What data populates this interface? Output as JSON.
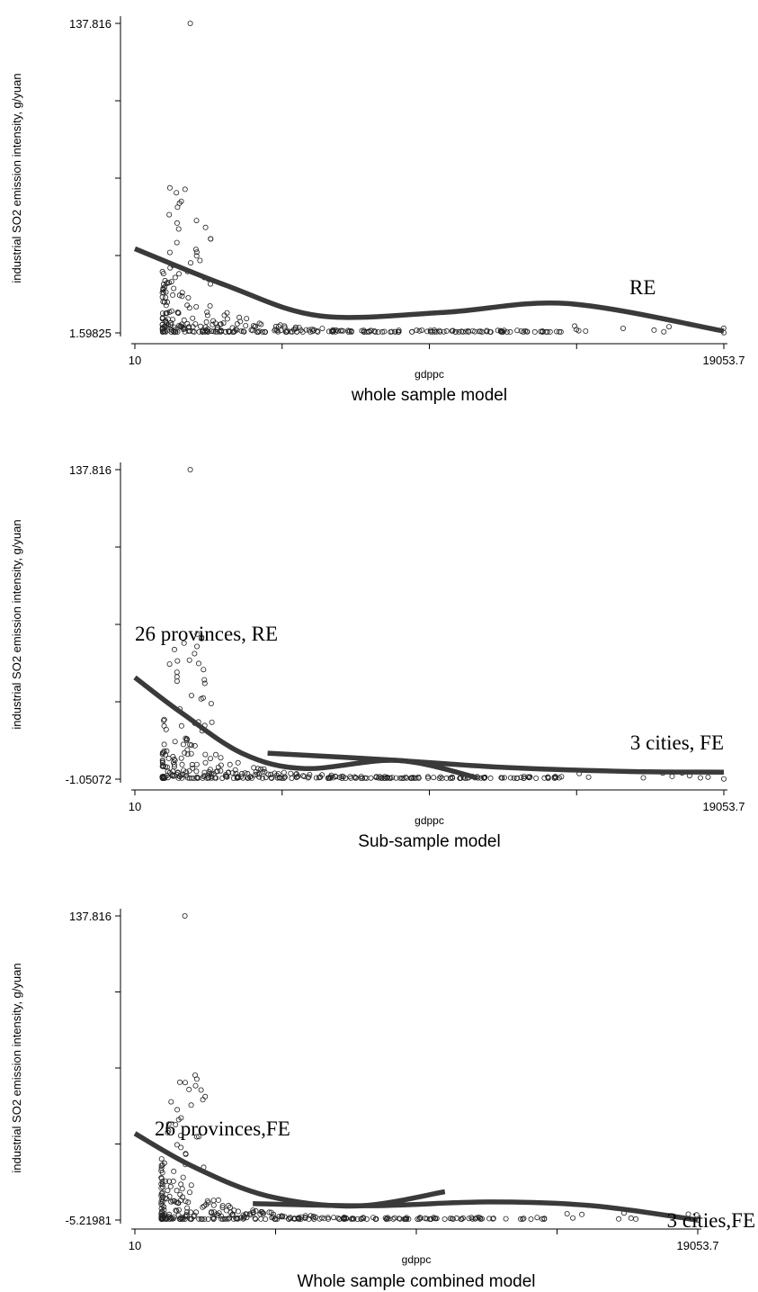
{
  "chart_data": [
    {
      "type": "scatter",
      "title": "whole sample model",
      "xlabel": "gdppc",
      "ylabel": "industrial SO2 emission intensity, g/yuan",
      "x_ticks": [
        "10",
        "19053.7"
      ],
      "y_ticks": [
        "137.816",
        "1.59825"
      ],
      "xlim": [
        10,
        19053.7
      ],
      "ylim": [
        1.59825,
        137.816
      ],
      "grid": false,
      "points": {
        "seed": 7,
        "outliers": [
          [
            1800,
            137.816
          ]
        ]
      },
      "curves": [
        {
          "label": "RE",
          "x": [
            10,
            3000,
            6000,
            10000,
            14000,
            19053.7
          ],
          "y": [
            38.65,
            22.3,
            9.07,
            10.63,
            14.5,
            2.4
          ]
        }
      ]
    },
    {
      "type": "scatter",
      "title": "Sub-sample model",
      "xlabel": "gdppc",
      "ylabel": "industrial SO2 emission intensity, g/yuan",
      "x_ticks": [
        "10",
        "19053.7"
      ],
      "y_ticks": [
        "137.816",
        "-1.05072"
      ],
      "xlim": [
        10,
        19053.7
      ],
      "ylim": [
        -1.05072,
        137.816
      ],
      "grid": false,
      "points": {
        "seed": 11,
        "outliers": [
          [
            1800,
            137.816
          ]
        ]
      },
      "curves": [
        {
          "label": "26 provinces, RE",
          "x": [
            10,
            1500,
            3500,
            5500,
            8500,
            11100
          ],
          "y": [
            44.6,
            28.9,
            10.4,
            3.7,
            7.4,
            -0.45
          ]
        },
        {
          "label": "3 cities, FE",
          "x": [
            4300,
            8000,
            12000,
            16000,
            19053.7
          ],
          "y": [
            10.6,
            7.8,
            4.2,
            2.4,
            2.1
          ]
        }
      ]
    },
    {
      "type": "scatter",
      "title": "Whole sample combined model",
      "xlabel": "gdppc",
      "ylabel": "industrial SO2 emission intensity, g/yuan",
      "x_ticks": [
        "10",
        "19053.7"
      ],
      "y_ticks": [
        "137.816",
        "-5.21981"
      ],
      "xlim": [
        10,
        19053.7
      ],
      "ylim": [
        -5.21981,
        137.816
      ],
      "grid": false,
      "points": {
        "seed": 23,
        "outliers": [
          [
            1700,
            137.816
          ]
        ]
      },
      "curves": [
        {
          "label": "26 provinces,FE",
          "x": [
            10,
            2000,
            4500,
            7500,
            10500
          ],
          "y": [
            35.5,
            19.8,
            6.1,
            1.4,
            8.1
          ]
        },
        {
          "label": "3 cities,FE",
          "x": [
            4000,
            8000,
            12000,
            15500,
            19053.7
          ],
          "y": [
            2.5,
            1.5,
            3.3,
            1.5,
            -5.2
          ]
        }
      ]
    }
  ]
}
